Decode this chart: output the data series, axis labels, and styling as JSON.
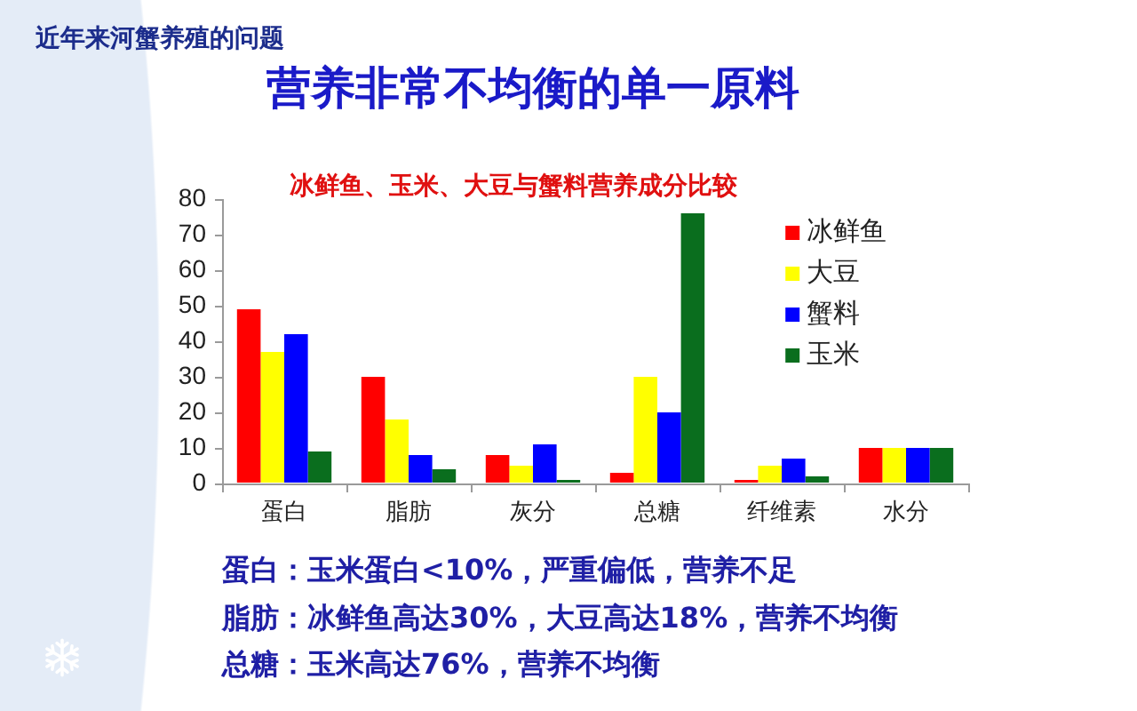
{
  "chart_data": {
    "type": "bar",
    "title": "营养非常不均衡的单一原料",
    "subtitle": "冰鲜鱼、玉米、大豆与蟹料营养成分比较",
    "annotations": [
      "近年来河蟹养殖的问题",
      "蛋白：玉米蛋白<10%，严重偏低，营养不足",
      "脂肪：冰鲜鱼高达30%，大豆高达18%，营养不均衡",
      "总糖：玉米高达76%，营养不均衡"
    ],
    "categories": [
      "蛋白",
      "脂肪",
      "灰分",
      "总糖",
      "纤维素",
      "水分"
    ],
    "series": [
      {
        "name": "冰鲜鱼",
        "color": "#ff0000",
        "values": [
          49,
          30,
          8,
          3,
          1,
          10
        ]
      },
      {
        "name": "大豆",
        "color": "#ffff00",
        "values": [
          37,
          18,
          5,
          30,
          5,
          10
        ]
      },
      {
        "name": "蟹料",
        "color": "#0000ff",
        "values": [
          42,
          8,
          11,
          20,
          7,
          10
        ]
      },
      {
        "name": "玉米",
        "color": "#0a6e1e",
        "values": [
          9,
          4,
          1,
          76,
          2,
          10
        ]
      }
    ],
    "ylim": [
      0,
      80
    ],
    "yticks": [
      0,
      10,
      20,
      30,
      40,
      50,
      60,
      70,
      80
    ],
    "legend": "top right"
  }
}
